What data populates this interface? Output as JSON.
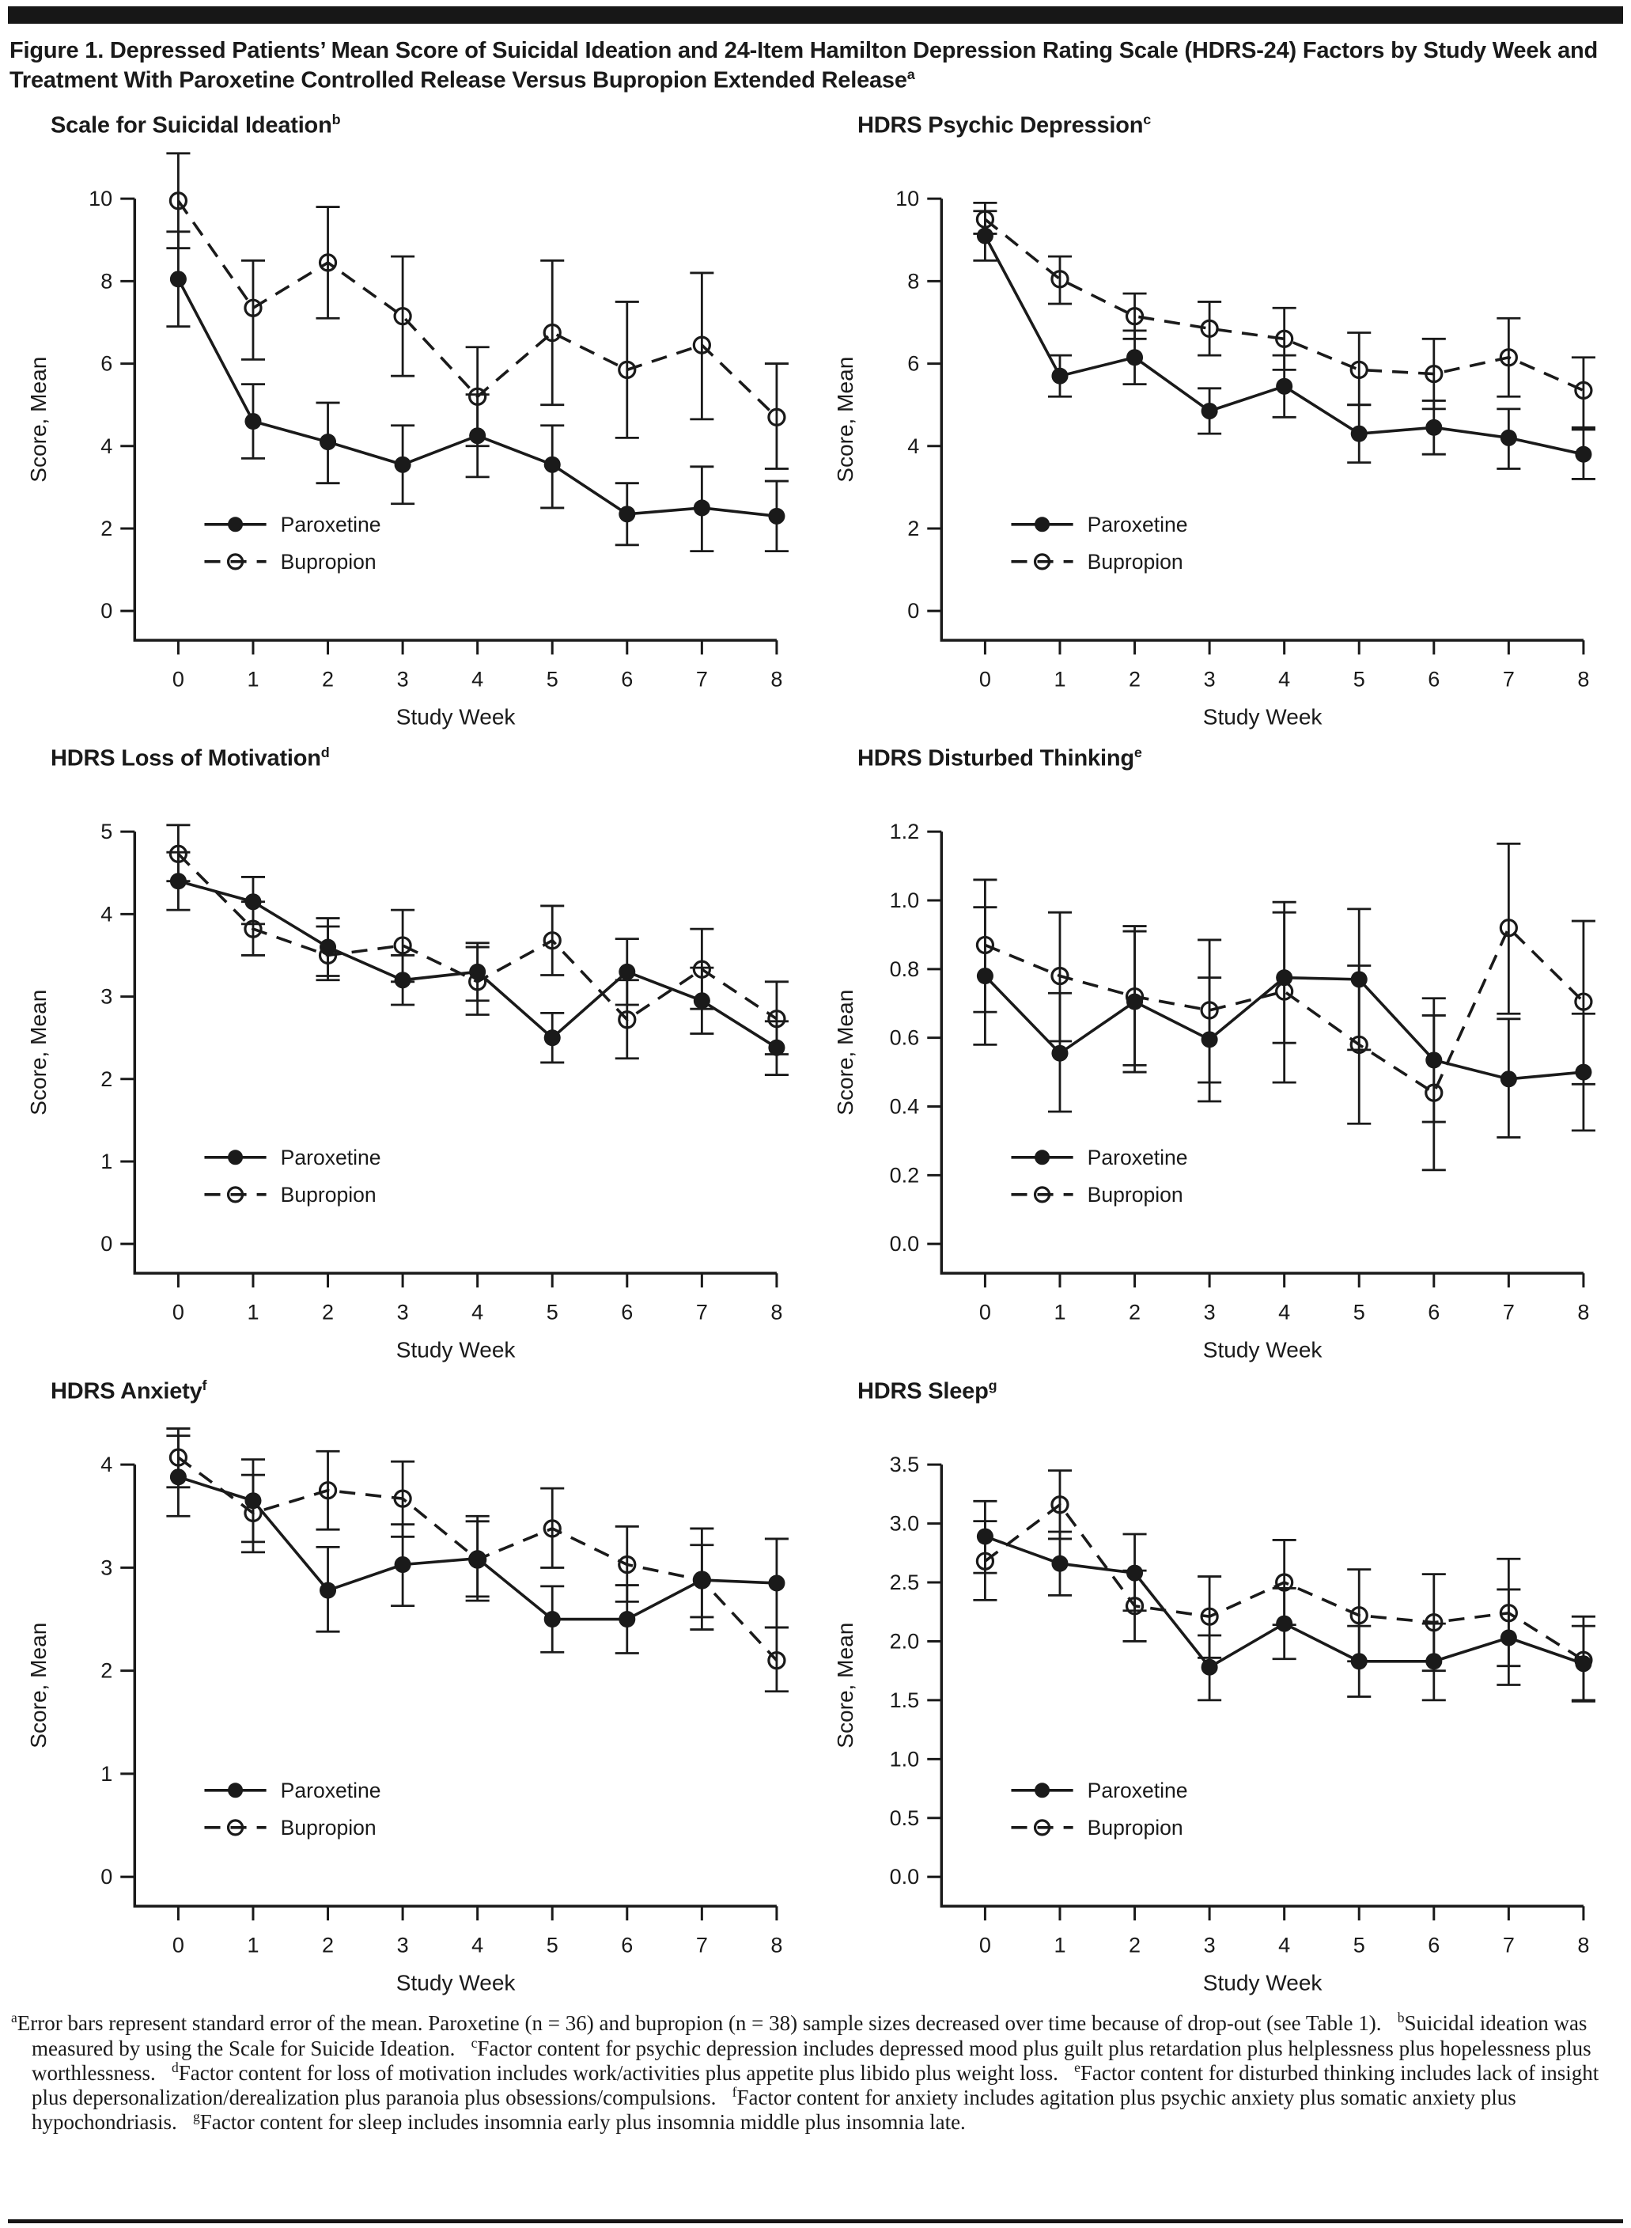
{
  "figure": {
    "title": "Figure 1. Depressed Patients’ Mean Score of Suicidal Ideation and 24-Item Hamilton Depression Rating Scale (HDRS-24) Factors by Study Week and Treatment With Paroxetine Controlled Release Versus Bupropion Extended Release",
    "title_sup": "a"
  },
  "axes": {
    "xlabel": "Study Week",
    "ylabel": "Score, Mean"
  },
  "legend": {
    "paroxetine": "Paroxetine",
    "bupropion": "Bupropion",
    "position": "lower-left inside plot"
  },
  "ink_color": "#1a1a1a",
  "chart_data": [
    {
      "type": "line",
      "title": "Scale for Suicidal Ideation",
      "title_sup": "b",
      "xlabel": "Study Week",
      "ylabel": "Score, Mean",
      "x": [
        0,
        1,
        2,
        3,
        4,
        5,
        6,
        7,
        8
      ],
      "ylim": [
        0,
        10
      ],
      "yticks": [
        0,
        2,
        4,
        6,
        8,
        10
      ],
      "y_decimals": 0,
      "series": [
        {
          "name": "Paroxetine",
          "marker": "filled-circle",
          "line": "solid",
          "values": [
            8.05,
            4.6,
            4.1,
            3.55,
            4.25,
            3.55,
            2.35,
            2.5,
            2.3
          ],
          "err_lo": [
            6.9,
            3.7,
            3.1,
            2.6,
            3.25,
            2.5,
            1.6,
            1.45,
            1.45
          ],
          "err_hi": [
            9.2,
            5.5,
            5.05,
            4.5,
            5.25,
            4.5,
            3.1,
            3.5,
            3.15
          ]
        },
        {
          "name": "Bupropion",
          "marker": "open-circle",
          "line": "dashed",
          "values": [
            9.95,
            7.35,
            8.45,
            7.15,
            5.2,
            6.75,
            5.85,
            6.45,
            4.7
          ],
          "err_lo": [
            8.8,
            6.1,
            7.1,
            5.7,
            4.0,
            5.0,
            4.2,
            4.65,
            3.45
          ],
          "err_hi": [
            11.1,
            8.5,
            9.8,
            8.6,
            6.4,
            8.5,
            7.5,
            8.2,
            6.0
          ]
        }
      ]
    },
    {
      "type": "line",
      "title": "HDRS Psychic Depression",
      "title_sup": "c",
      "xlabel": "Study Week",
      "ylabel": "Score, Mean",
      "x": [
        0,
        1,
        2,
        3,
        4,
        5,
        6,
        7,
        8
      ],
      "ylim": [
        0,
        10
      ],
      "yticks": [
        0,
        2,
        4,
        6,
        8,
        10
      ],
      "y_decimals": 0,
      "series": [
        {
          "name": "Paroxetine",
          "marker": "filled-circle",
          "line": "solid",
          "values": [
            9.1,
            5.7,
            6.15,
            4.85,
            5.45,
            4.3,
            4.45,
            4.2,
            3.8
          ],
          "err_lo": [
            8.5,
            5.2,
            5.5,
            4.3,
            4.7,
            3.6,
            3.8,
            3.45,
            3.2
          ],
          "err_hi": [
            9.7,
            6.2,
            6.8,
            5.4,
            6.2,
            5.0,
            5.1,
            4.9,
            4.4
          ]
        },
        {
          "name": "Bupropion",
          "marker": "open-circle",
          "line": "dashed",
          "values": [
            9.5,
            8.05,
            7.15,
            6.85,
            6.6,
            5.85,
            5.75,
            6.15,
            5.35
          ],
          "err_lo": [
            9.15,
            7.45,
            6.6,
            6.2,
            5.85,
            5.0,
            4.9,
            5.2,
            4.45
          ],
          "err_hi": [
            9.9,
            8.6,
            7.7,
            7.5,
            7.35,
            6.75,
            6.6,
            7.1,
            6.15
          ]
        }
      ]
    },
    {
      "type": "line",
      "title": "HDRS Loss of Motivation",
      "title_sup": "d",
      "xlabel": "Study Week",
      "ylabel": "Score, Mean",
      "x": [
        0,
        1,
        2,
        3,
        4,
        5,
        6,
        7,
        8
      ],
      "ylim": [
        0,
        5
      ],
      "yticks": [
        0,
        1,
        2,
        3,
        4,
        5
      ],
      "y_decimals": 0,
      "series": [
        {
          "name": "Paroxetine",
          "marker": "filled-circle",
          "line": "solid",
          "values": [
            4.4,
            4.15,
            3.6,
            3.2,
            3.3,
            2.5,
            3.3,
            2.95,
            2.38
          ],
          "err_lo": [
            4.05,
            3.88,
            3.25,
            2.9,
            2.95,
            2.2,
            2.9,
            2.55,
            2.05
          ],
          "err_hi": [
            4.75,
            4.45,
            3.95,
            3.5,
            3.65,
            2.8,
            3.7,
            3.35,
            2.7
          ]
        },
        {
          "name": "Bupropion",
          "marker": "open-circle",
          "line": "dashed",
          "values": [
            4.73,
            3.82,
            3.5,
            3.62,
            3.18,
            3.68,
            2.72,
            3.33,
            2.73
          ],
          "err_lo": [
            4.4,
            3.5,
            3.2,
            3.18,
            2.78,
            3.26,
            2.25,
            2.85,
            2.3
          ],
          "err_hi": [
            5.08,
            4.15,
            3.85,
            4.05,
            3.6,
            4.1,
            3.2,
            3.82,
            3.18
          ]
        }
      ]
    },
    {
      "type": "line",
      "title": "HDRS Disturbed Thinking",
      "title_sup": "e",
      "xlabel": "Study Week",
      "ylabel": "Score, Mean",
      "x": [
        0,
        1,
        2,
        3,
        4,
        5,
        6,
        7,
        8
      ],
      "ylim": [
        0,
        1.2
      ],
      "yticks": [
        0,
        0.2,
        0.4,
        0.6,
        0.8,
        1.0,
        1.2
      ],
      "y_decimals": 1,
      "series": [
        {
          "name": "Paroxetine",
          "marker": "filled-circle",
          "line": "solid",
          "values": [
            0.78,
            0.555,
            0.705,
            0.595,
            0.775,
            0.77,
            0.535,
            0.48,
            0.5
          ],
          "err_lo": [
            0.58,
            0.385,
            0.5,
            0.415,
            0.585,
            0.565,
            0.355,
            0.31,
            0.33
          ],
          "err_hi": [
            0.98,
            0.73,
            0.91,
            0.775,
            0.965,
            0.975,
            0.715,
            0.655,
            0.67
          ],
          "note": ""
        },
        {
          "name": "Bupropion",
          "marker": "open-circle",
          "line": "dashed",
          "values": [
            0.87,
            0.78,
            0.72,
            0.68,
            0.735,
            0.58,
            0.44,
            0.92,
            0.705
          ],
          "err_lo": [
            0.675,
            0.59,
            0.52,
            0.47,
            0.47,
            0.35,
            0.215,
            0.67,
            0.465
          ],
          "err_hi": [
            1.06,
            0.965,
            0.925,
            0.885,
            0.995,
            0.81,
            0.665,
            1.165,
            0.94
          ]
        }
      ]
    },
    {
      "type": "line",
      "title": "HDRS Anxiety",
      "title_sup": "f",
      "xlabel": "Study Week",
      "ylabel": "Score, Mean",
      "x": [
        0,
        1,
        2,
        3,
        4,
        5,
        6,
        7,
        8
      ],
      "ylim": [
        0,
        4
      ],
      "yticks": [
        0,
        1,
        2,
        3,
        4
      ],
      "y_decimals": 0,
      "series": [
        {
          "name": "Paroxetine",
          "marker": "filled-circle",
          "line": "solid",
          "values": [
            3.88,
            3.65,
            2.78,
            3.03,
            3.09,
            2.5,
            2.5,
            2.88,
            2.85
          ],
          "err_lo": [
            3.5,
            3.25,
            2.38,
            2.63,
            2.68,
            2.18,
            2.17,
            2.4,
            2.42
          ],
          "err_hi": [
            4.28,
            4.05,
            3.2,
            3.42,
            3.5,
            2.82,
            2.83,
            3.38,
            3.28
          ]
        },
        {
          "name": "Bupropion",
          "marker": "open-circle",
          "line": "dashed",
          "values": [
            4.07,
            3.53,
            3.75,
            3.67,
            3.08,
            3.38,
            3.03,
            2.88,
            2.1
          ],
          "err_lo": [
            3.78,
            3.15,
            3.37,
            3.3,
            2.72,
            3.0,
            2.67,
            2.52,
            1.8
          ],
          "err_hi": [
            4.35,
            3.9,
            4.13,
            4.03,
            3.45,
            3.77,
            3.4,
            3.22,
            2.42
          ]
        }
      ]
    },
    {
      "type": "line",
      "title": "HDRS Sleep",
      "title_sup": "g",
      "xlabel": "Study Week",
      "ylabel": "Score, Mean",
      "x": [
        0,
        1,
        2,
        3,
        4,
        5,
        6,
        7,
        8
      ],
      "ylim": [
        0,
        3.5
      ],
      "yticks": [
        0,
        0.5,
        1.0,
        1.5,
        2.0,
        2.5,
        3.0,
        3.5
      ],
      "y_decimals": 1,
      "series": [
        {
          "name": "Paroxetine",
          "marker": "filled-circle",
          "line": "solid",
          "values": [
            2.89,
            2.66,
            2.58,
            1.78,
            2.15,
            1.83,
            1.83,
            2.03,
            1.81
          ],
          "err_lo": [
            2.58,
            2.39,
            2.26,
            1.5,
            1.85,
            1.53,
            1.5,
            1.63,
            1.49
          ],
          "err_hi": [
            3.19,
            2.93,
            2.91,
            2.05,
            2.45,
            2.13,
            2.15,
            2.44,
            2.13
          ]
        },
        {
          "name": "Bupropion",
          "marker": "open-circle",
          "line": "dashed",
          "values": [
            2.68,
            3.16,
            2.3,
            2.21,
            2.5,
            2.22,
            2.16,
            2.24,
            1.84
          ],
          "err_lo": [
            2.35,
            2.87,
            2.0,
            1.86,
            2.14,
            1.83,
            1.75,
            1.79,
            1.5
          ],
          "err_hi": [
            3.02,
            3.45,
            2.6,
            2.55,
            2.86,
            2.61,
            2.57,
            2.7,
            2.21
          ]
        }
      ]
    }
  ],
  "footnotes": [
    {
      "sup": "a",
      "text": "Error bars represent standard error of the mean. Paroxetine (n = 36) and bupropion (n = 38) sample sizes decreased over time because of drop-out (see Table 1)."
    },
    {
      "sup": "b",
      "text": "Suicidal ideation was measured by using the Scale for Suicide Ideation."
    },
    {
      "sup": "c",
      "text": "Factor content for psychic depression includes depressed mood plus guilt plus retardation plus helplessness plus hopelessness plus worthlessness."
    },
    {
      "sup": "d",
      "text": "Factor content for loss of motivation includes work/activities plus appetite plus libido plus weight loss."
    },
    {
      "sup": "e",
      "text": "Factor content for disturbed thinking includes lack of insight plus depersonalization/derealization plus paranoia plus obsessions/compulsions."
    },
    {
      "sup": "f",
      "text": "Factor content for anxiety includes agitation plus psychic anxiety plus somatic anxiety plus hypochondriasis."
    },
    {
      "sup": "g",
      "text": "Factor content for sleep includes insomnia early plus insomnia middle plus insomnia late."
    }
  ]
}
